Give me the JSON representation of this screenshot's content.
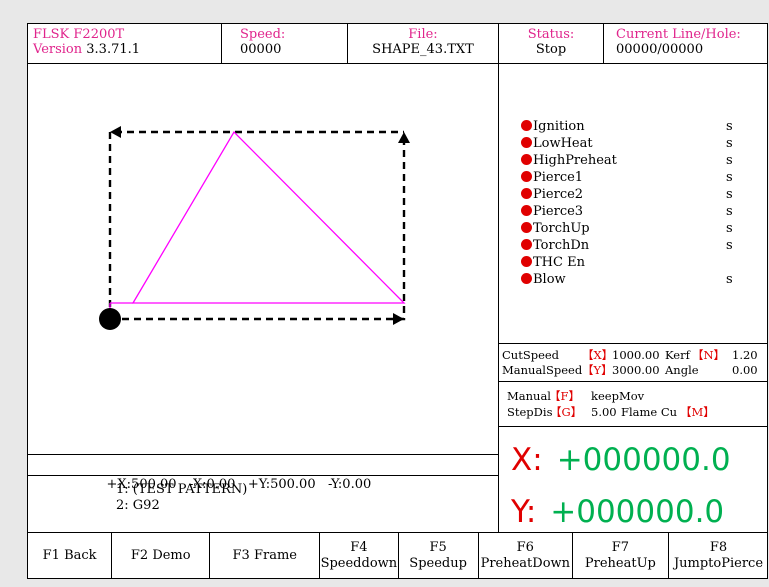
{
  "header": {
    "model_label": "FLSK F2200T",
    "version_label": "Version",
    "version_value": "3.3.71.1",
    "speed_label": "Speed:",
    "speed_value": "00000",
    "file_label": "File:",
    "file_value": "SHAPE_43.TXT",
    "status_label": "Status:",
    "status_value": "Stop",
    "line_label": "Current Line/Hole:",
    "line_value": "00000/00000"
  },
  "io_panel": {
    "items": [
      {
        "label": "Ignition",
        "unit": "s",
        "dot": true
      },
      {
        "label": "LowHeat",
        "unit": "s",
        "dot": true
      },
      {
        "label": "HighPreheat",
        "unit": "s",
        "dot": true
      },
      {
        "label": "Pierce1",
        "unit": "s",
        "dot": true
      },
      {
        "label": "Pierce2",
        "unit": "s",
        "dot": true
      },
      {
        "label": "Pierce3",
        "unit": "s",
        "dot": true
      },
      {
        "label": "TorchUp",
        "unit": "s",
        "dot": true
      },
      {
        "label": "TorchDn",
        "unit": "s",
        "dot": true
      },
      {
        "label": "THC En",
        "unit": "",
        "dot": true
      },
      {
        "label": "Blow",
        "unit": "s",
        "dot": true
      }
    ]
  },
  "params": {
    "cutspeed_label": "CutSpeed",
    "cutspeed_key": "【X】",
    "cutspeed_value": "1000.00",
    "kerf_label": "Kerf",
    "kerf_key": "【N】",
    "kerf_value": "1.20",
    "manualspeed_label": "ManualSpeed",
    "manualspeed_key": "【Y】",
    "manualspeed_value": "3000.00",
    "angle_label": "Angle",
    "angle_value": "0.00"
  },
  "manual": {
    "mode_label": "Manual",
    "mode_key": "【F】",
    "mode_value": "keepMov",
    "stepdis_label": "StepDis",
    "stepdis_key": "【G】",
    "stepdis_value": "5.00",
    "flame_label": "Flame Cu",
    "flame_key": "【M】"
  },
  "coords": {
    "x_axis": "X:",
    "x_value": "+000000.0",
    "y_axis": "Y:",
    "y_value": "+000000.0"
  },
  "limits": {
    "text": "+X:500.00   -X:0.00   +Y:500.00   -Y:0.00"
  },
  "program": {
    "lines": [
      "1: (TEST PATTERN)",
      "2: G92"
    ]
  },
  "fkeys": [
    {
      "line1": "F1 Back",
      "line2": ""
    },
    {
      "line1": "F2 Demo",
      "line2": ""
    },
    {
      "line1": "F3 Frame",
      "line2": ""
    },
    {
      "line1": "F4",
      "line2": "Speeddown"
    },
    {
      "line1": "F5",
      "line2": "Speedup"
    },
    {
      "line1": "F6",
      "line2": "PreheatDown"
    },
    {
      "line1": "F7",
      "line2": "PreheatUp"
    },
    {
      "line1": "F8",
      "line2": "JumptoPierce"
    }
  ],
  "colors": {
    "label": "#e0248c",
    "indicator": "#e00000",
    "coordinate": "#00b050",
    "path": "#ff00ff"
  }
}
